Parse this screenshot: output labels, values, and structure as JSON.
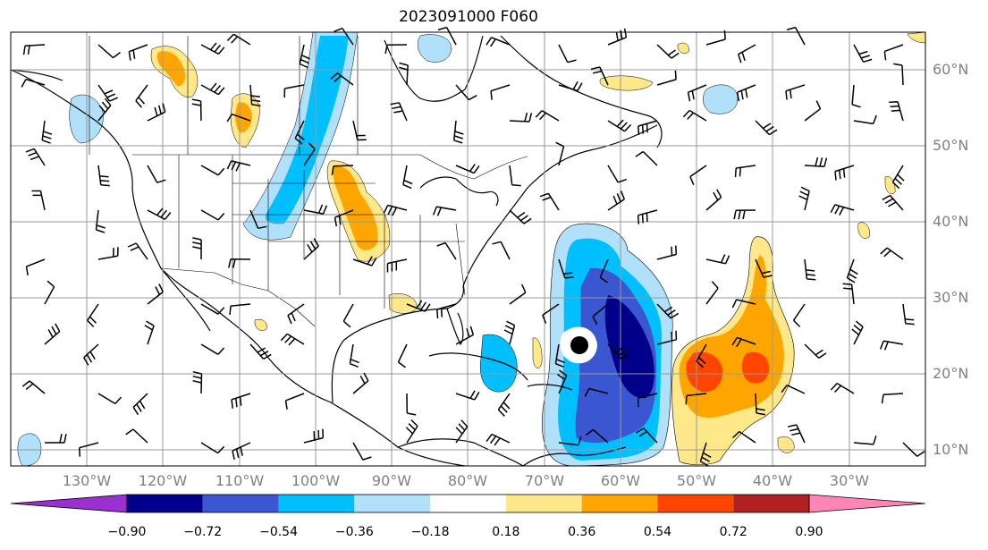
{
  "title": "2023091000 F060",
  "lat_labels": [
    "60°N",
    "50°N",
    "40°N",
    "30°N",
    "20°N",
    "10°N"
  ],
  "lon_labels": [
    "130°W",
    "120°W",
    "110°W",
    "100°W",
    "90°W",
    "80°W",
    "70°W",
    "60°W",
    "50°W",
    "40°W",
    "30°W"
  ],
  "colorbar": {
    "ticks": [
      "−0.90",
      "−0.72",
      "−0.54",
      "−0.36",
      "−0.18",
      "0.18",
      "0.36",
      "0.54",
      "0.72",
      "0.90"
    ],
    "colors": [
      "#9b30d0",
      "#00008b",
      "#3a56d0",
      "#00bfff",
      "#b0e0fa",
      "#ffffff",
      "#ffe88a",
      "#ffa500",
      "#ff4500",
      "#b22222",
      "#ff85b4"
    ]
  },
  "palette": {
    "dark_navy": "#00008b",
    "blue": "#3a56d0",
    "cyan": "#00bfff",
    "light_blue": "#b0e0fa",
    "light_yellow": "#ffe88a",
    "orange": "#ffa500",
    "red_orange": "#ff4500",
    "grid": "#999999",
    "marker": "#000000"
  },
  "map": {
    "projection": "mercator",
    "lon_range": [
      -140,
      -20
    ],
    "lat_range": [
      8,
      65
    ],
    "storm_marker": "black-dot"
  }
}
